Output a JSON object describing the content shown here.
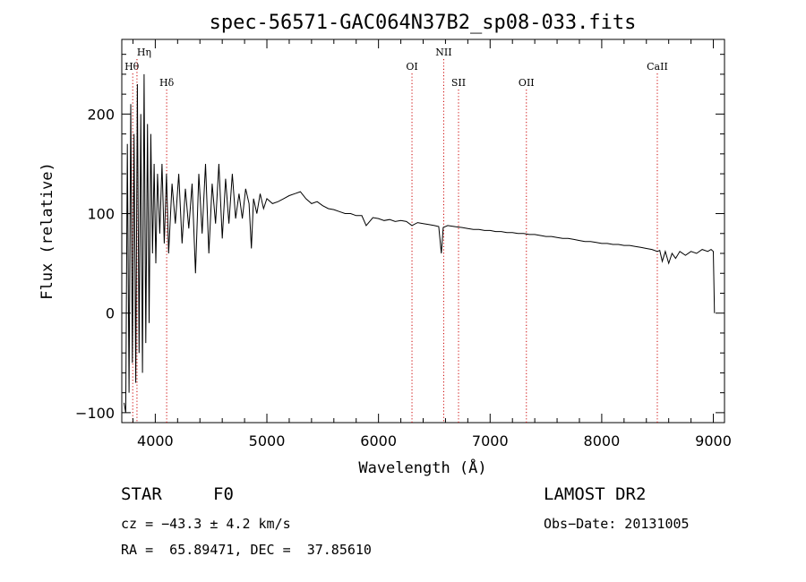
{
  "chart_data": {
    "type": "line",
    "title": "spec-56571-GAC064N37B2_sp08-033.fits",
    "xlabel": "Wavelength (Å)",
    "ylabel": "Flux (relative)",
    "xlim": [
      3700,
      9100
    ],
    "ylim": [
      -110,
      275
    ],
    "x_ticks": [
      4000,
      5000,
      6000,
      7000,
      8000,
      9000
    ],
    "y_ticks": [
      -100,
      0,
      100,
      200
    ],
    "x_tick_labels": [
      "4000",
      "5000",
      "6000",
      "7000",
      "8000",
      "9000"
    ],
    "y_tick_labels": [
      "−100",
      "0",
      "100",
      "200"
    ],
    "grid": false,
    "line_color": "#000000",
    "marker_color": "#cc0000",
    "spectral_lines": [
      {
        "name": "Hθ",
        "wavelength": 3798
      },
      {
        "name": "Hη",
        "wavelength": 3836
      },
      {
        "name": "Hδ",
        "wavelength": 4102
      },
      {
        "name": "OI",
        "wavelength": 6300
      },
      {
        "name": "NII",
        "wavelength": 6584
      },
      {
        "name": "SII",
        "wavelength": 6717
      },
      {
        "name": "OII",
        "wavelength": 7325
      },
      {
        "name": "CaII",
        "wavelength": 8498
      }
    ],
    "spectrum": {
      "x": [
        3720,
        3735,
        3750,
        3765,
        3780,
        3795,
        3810,
        3825,
        3840,
        3855,
        3870,
        3885,
        3900,
        3915,
        3930,
        3945,
        3960,
        3975,
        3990,
        4005,
        4020,
        4040,
        4060,
        4080,
        4100,
        4120,
        4150,
        4180,
        4210,
        4240,
        4270,
        4300,
        4330,
        4360,
        4390,
        4420,
        4450,
        4480,
        4510,
        4540,
        4570,
        4600,
        4630,
        4660,
        4690,
        4720,
        4750,
        4780,
        4810,
        4840,
        4861,
        4880,
        4910,
        4940,
        4970,
        5000,
        5050,
        5100,
        5150,
        5200,
        5250,
        5300,
        5350,
        5400,
        5450,
        5500,
        5550,
        5600,
        5650,
        5700,
        5750,
        5800,
        5850,
        5890,
        5950,
        6000,
        6050,
        6100,
        6150,
        6200,
        6250,
        6300,
        6350,
        6400,
        6450,
        6500,
        6540,
        6563,
        6580,
        6620,
        6680,
        6750,
        6800,
        6850,
        6900,
        6950,
        7000,
        7050,
        7100,
        7150,
        7200,
        7250,
        7300,
        7350,
        7400,
        7450,
        7500,
        7550,
        7600,
        7650,
        7700,
        7750,
        7800,
        7850,
        7900,
        7950,
        8000,
        8050,
        8100,
        8150,
        8200,
        8250,
        8300,
        8350,
        8400,
        8450,
        8498,
        8520,
        8542,
        8570,
        8600,
        8630,
        8662,
        8700,
        8750,
        8800,
        8850,
        8900,
        8950,
        8980,
        9000,
        9010
      ],
      "y": [
        -90,
        -100,
        170,
        -80,
        210,
        -50,
        180,
        -70,
        230,
        -40,
        200,
        -60,
        240,
        -30,
        190,
        -10,
        180,
        60,
        150,
        50,
        140,
        80,
        150,
        70,
        140,
        60,
        130,
        90,
        140,
        70,
        125,
        85,
        130,
        40,
        140,
        80,
        150,
        60,
        130,
        90,
        150,
        75,
        135,
        90,
        140,
        95,
        120,
        95,
        125,
        110,
        65,
        115,
        100,
        120,
        105,
        115,
        110,
        112,
        115,
        118,
        120,
        122,
        115,
        110,
        112,
        108,
        105,
        104,
        102,
        100,
        100,
        98,
        98,
        88,
        96,
        95,
        93,
        94,
        92,
        93,
        92,
        88,
        91,
        90,
        89,
        88,
        87,
        60,
        86,
        88,
        87,
        86,
        85,
        84,
        84,
        83,
        83,
        82,
        82,
        81,
        81,
        80,
        80,
        79,
        79,
        78,
        77,
        77,
        76,
        75,
        75,
        74,
        73,
        72,
        72,
        71,
        70,
        70,
        69,
        69,
        68,
        68,
        67,
        66,
        65,
        64,
        62,
        63,
        52,
        62,
        50,
        60,
        55,
        62,
        58,
        62,
        60,
        64,
        62,
        64,
        62,
        0
      ]
    }
  },
  "info": {
    "object_type": "STAR",
    "subclass": "F0",
    "redshift_line": "cz = −43.3 ± 4.2 km/s",
    "coords_line": "RA =  65.89471, DEC =  37.85610",
    "survey": "LAMOST DR2",
    "obs_date_line": "Obs−Date: 20131005"
  }
}
